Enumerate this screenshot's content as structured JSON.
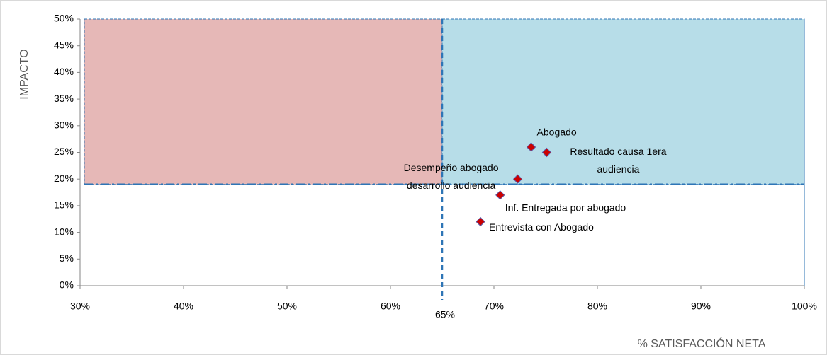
{
  "chart_data": {
    "type": "scatter",
    "x_label": "% SATISFACCIÓN NETA",
    "y_label": "IMPACTO",
    "series": [
      {
        "color": "#cc0000",
        "x": [
          73.6,
          75.1,
          72.3,
          70.6,
          68.7
        ],
        "values": [
          26,
          25,
          20,
          17,
          12
        ],
        "labels": [
          [
            "Abogado"
          ],
          [
            "Resultado causa 1era",
            "audiencia"
          ],
          [
            "Desempeño abogado",
            "desarrollo audiencia"
          ],
          [
            "Inf. Entregada por abogado"
          ],
          [
            "Entrevista con Abogado"
          ]
        ]
      }
    ],
    "xlim": [
      30,
      100
    ],
    "ylim": [
      0,
      50
    ],
    "xticks": [
      {
        "value": 30,
        "label": "30%"
      },
      {
        "value": 40,
        "label": "40%"
      },
      {
        "value": 50,
        "label": "50%"
      },
      {
        "value": 60,
        "label": "60%"
      },
      {
        "value": 70,
        "label": "70%"
      },
      {
        "value": 80,
        "label": "80%"
      },
      {
        "value": 90,
        "label": "90%"
      },
      {
        "value": 100,
        "label": "100%"
      }
    ],
    "yticks": [
      {
        "value": 0,
        "label": "0%"
      },
      {
        "value": 5,
        "label": "5%"
      },
      {
        "value": 10,
        "label": "10%"
      },
      {
        "value": 15,
        "label": "15%"
      },
      {
        "value": 20,
        "label": "20%"
      },
      {
        "value": 25,
        "label": "25%"
      },
      {
        "value": 30,
        "label": "30%"
      },
      {
        "value": 35,
        "label": "35%"
      },
      {
        "value": 40,
        "label": "40%"
      },
      {
        "value": 45,
        "label": "45%"
      },
      {
        "value": 50,
        "label": "50%"
      }
    ],
    "x_threshold": {
      "value": 65,
      "label": "65%"
    },
    "y_threshold": 19,
    "low_region_color": "#e6b8b7",
    "high_region_color": "#b7dde8",
    "threshold_color": "#2e75b6"
  }
}
